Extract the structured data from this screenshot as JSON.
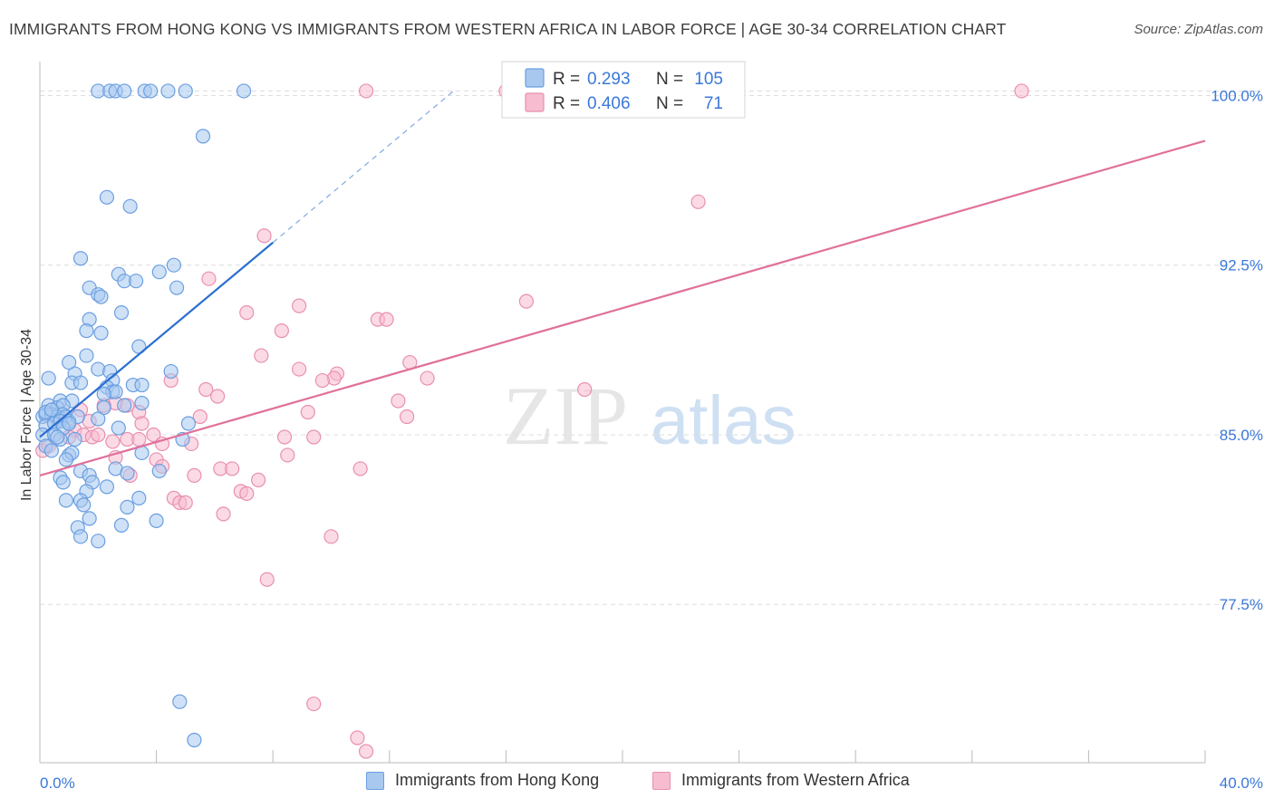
{
  "title": "IMMIGRANTS FROM HONG KONG VS IMMIGRANTS FROM WESTERN AFRICA IN LABOR FORCE | AGE 30-34 CORRELATION CHART",
  "source": "Source: ZipAtlas.com",
  "watermark": {
    "zip": "ZIP",
    "atlas": "atlas"
  },
  "colors": {
    "blue_fill": "#a8c8f0",
    "blue_stroke": "#6a9ee0",
    "blue_line": "#2a6fd0",
    "pink_fill": "#f7bcd0",
    "pink_stroke": "#e890b0",
    "pink_line": "#e0709a",
    "value_text": "#3a78d8",
    "grid": "#dddddd"
  },
  "legend": {
    "rows": [
      {
        "r_label": "R =",
        "r_value": "0.293",
        "n_label": "N =",
        "n_value": "105"
      },
      {
        "r_label": "R =",
        "r_value": "0.406",
        "n_label": "N =",
        "n_value": "71"
      }
    ]
  },
  "bottom_legend": [
    "Immigrants from Hong Kong",
    "Immigrants from Western Africa"
  ],
  "chart_data": {
    "type": "scatter",
    "title": "IMMIGRANTS FROM HONG KONG VS IMMIGRANTS FROM WESTERN AFRICA IN LABOR FORCE | AGE 30-34 CORRELATION CHART",
    "xlabel": "",
    "ylabel": "In Labor Force | Age 30-34",
    "xlim": [
      0,
      40
    ],
    "ylim": [
      70.5,
      101.5
    ],
    "x_tick_labels": [
      "0.0%",
      "40.0%"
    ],
    "y_ticks": [
      77.5,
      85.0,
      92.5,
      100.0
    ],
    "y_tick_labels": [
      "77.5%",
      "85.0%",
      "92.5%",
      "100.0%"
    ],
    "grid": true,
    "legend_position": "top-center",
    "series": [
      {
        "name": "Immigrants from Hong Kong",
        "color": "blue",
        "r": 0.293,
        "n": 105,
        "trend": {
          "x": [
            0,
            8.0
          ],
          "y": [
            84.9,
            93.5
          ],
          "dashed_to": [
            14.2,
            100.2
          ]
        },
        "points": [
          [
            2.0,
            100.2
          ],
          [
            2.4,
            100.2
          ],
          [
            2.6,
            100.2
          ],
          [
            2.9,
            100.2
          ],
          [
            3.6,
            100.2
          ],
          [
            3.8,
            100.2
          ],
          [
            4.4,
            100.2
          ],
          [
            5.0,
            100.2
          ],
          [
            7.0,
            100.2
          ],
          [
            5.6,
            98.2
          ],
          [
            2.3,
            95.5
          ],
          [
            3.1,
            95.1
          ],
          [
            1.4,
            92.8
          ],
          [
            4.6,
            92.5
          ],
          [
            2.7,
            92.1
          ],
          [
            4.1,
            92.2
          ],
          [
            2.9,
            91.8
          ],
          [
            3.3,
            91.8
          ],
          [
            1.7,
            91.5
          ],
          [
            4.7,
            91.5
          ],
          [
            2.0,
            91.2
          ],
          [
            2.1,
            91.1
          ],
          [
            2.8,
            90.4
          ],
          [
            1.7,
            90.1
          ],
          [
            1.6,
            89.6
          ],
          [
            2.1,
            89.5
          ],
          [
            3.4,
            88.9
          ],
          [
            1.6,
            88.5
          ],
          [
            0.3,
            87.5
          ],
          [
            1.2,
            87.7
          ],
          [
            1.1,
            87.3
          ],
          [
            1.4,
            87.3
          ],
          [
            2.0,
            87.9
          ],
          [
            2.4,
            87.8
          ],
          [
            2.5,
            87.4
          ],
          [
            2.3,
            87.1
          ],
          [
            1.0,
            88.2
          ],
          [
            4.5,
            87.8
          ],
          [
            3.2,
            87.2
          ],
          [
            3.5,
            87.2
          ],
          [
            2.5,
            86.9
          ],
          [
            2.6,
            86.9
          ],
          [
            2.2,
            86.8
          ],
          [
            0.7,
            86.5
          ],
          [
            1.1,
            86.5
          ],
          [
            0.3,
            86.3
          ],
          [
            0.6,
            86.2
          ],
          [
            0.8,
            86.3
          ],
          [
            2.2,
            86.2
          ],
          [
            2.9,
            86.3
          ],
          [
            3.5,
            86.4
          ],
          [
            0.1,
            85.8
          ],
          [
            0.2,
            85.9
          ],
          [
            0.4,
            85.9
          ],
          [
            0.6,
            85.8
          ],
          [
            0.7,
            85.7
          ],
          [
            0.8,
            85.9
          ],
          [
            0.9,
            85.8
          ],
          [
            1.0,
            85.6
          ],
          [
            1.3,
            85.8
          ],
          [
            2.0,
            85.7
          ],
          [
            0.2,
            85.4
          ],
          [
            0.5,
            85.5
          ],
          [
            0.7,
            85.6
          ],
          [
            0.8,
            85.3
          ],
          [
            1.0,
            85.5
          ],
          [
            2.7,
            85.3
          ],
          [
            5.1,
            85.5
          ],
          [
            0.1,
            85.0
          ],
          [
            0.5,
            85.0
          ],
          [
            0.7,
            84.8
          ],
          [
            1.2,
            84.8
          ],
          [
            4.9,
            84.8
          ],
          [
            0.2,
            84.5
          ],
          [
            0.4,
            84.3
          ],
          [
            3.5,
            84.2
          ],
          [
            1.0,
            84.1
          ],
          [
            1.1,
            84.2
          ],
          [
            0.9,
            83.9
          ],
          [
            1.4,
            83.4
          ],
          [
            2.6,
            83.5
          ],
          [
            4.1,
            83.4
          ],
          [
            0.7,
            83.1
          ],
          [
            0.8,
            82.9
          ],
          [
            1.7,
            83.2
          ],
          [
            1.8,
            82.9
          ],
          [
            2.3,
            82.7
          ],
          [
            1.6,
            82.5
          ],
          [
            3.0,
            83.3
          ],
          [
            0.9,
            82.1
          ],
          [
            1.4,
            82.1
          ],
          [
            1.5,
            81.9
          ],
          [
            3.4,
            82.2
          ],
          [
            3.0,
            81.8
          ],
          [
            1.7,
            81.3
          ],
          [
            4.0,
            81.2
          ],
          [
            1.3,
            80.9
          ],
          [
            2.8,
            81.0
          ],
          [
            1.4,
            80.5
          ],
          [
            2.0,
            80.3
          ],
          [
            4.8,
            73.2
          ],
          [
            5.3,
            71.5
          ],
          [
            0.2,
            86.0
          ],
          [
            0.4,
            86.1
          ],
          [
            0.6,
            84.9
          ]
        ]
      },
      {
        "name": "Immigrants from Western Africa",
        "color": "pink",
        "r": 0.406,
        "n": 71,
        "trend": {
          "x": [
            0,
            40
          ],
          "y": [
            83.2,
            98.0
          ]
        },
        "points": [
          [
            11.2,
            100.2
          ],
          [
            16.0,
            100.2
          ],
          [
            16.2,
            100.2
          ],
          [
            33.7,
            100.2
          ],
          [
            22.6,
            95.3
          ],
          [
            7.7,
            93.8
          ],
          [
            5.8,
            91.9
          ],
          [
            16.7,
            90.9
          ],
          [
            8.9,
            90.7
          ],
          [
            7.1,
            90.4
          ],
          [
            11.6,
            90.1
          ],
          [
            11.9,
            90.1
          ],
          [
            8.3,
            89.6
          ],
          [
            7.6,
            88.5
          ],
          [
            12.7,
            88.2
          ],
          [
            8.9,
            87.9
          ],
          [
            10.2,
            87.7
          ],
          [
            10.1,
            87.5
          ],
          [
            9.7,
            87.4
          ],
          [
            4.5,
            87.4
          ],
          [
            13.3,
            87.5
          ],
          [
            5.7,
            87.0
          ],
          [
            18.7,
            87.0
          ],
          [
            6.1,
            86.7
          ],
          [
            12.3,
            86.5
          ],
          [
            2.6,
            86.4
          ],
          [
            2.2,
            86.3
          ],
          [
            3.0,
            86.3
          ],
          [
            1.4,
            86.1
          ],
          [
            3.4,
            86.0
          ],
          [
            9.2,
            86.0
          ],
          [
            5.5,
            85.8
          ],
          [
            12.6,
            85.8
          ],
          [
            1.7,
            85.6
          ],
          [
            3.5,
            85.5
          ],
          [
            1.2,
            85.2
          ],
          [
            1.5,
            85.0
          ],
          [
            1.8,
            84.9
          ],
          [
            3.9,
            85.0
          ],
          [
            8.4,
            84.9
          ],
          [
            9.4,
            84.9
          ],
          [
            2.5,
            84.7
          ],
          [
            5.2,
            84.6
          ],
          [
            0.1,
            84.3
          ],
          [
            3.0,
            84.8
          ],
          [
            4.2,
            84.6
          ],
          [
            8.5,
            84.1
          ],
          [
            4.0,
            83.9
          ],
          [
            4.2,
            83.6
          ],
          [
            3.1,
            83.2
          ],
          [
            6.2,
            83.5
          ],
          [
            6.6,
            83.5
          ],
          [
            11.0,
            83.5
          ],
          [
            5.3,
            83.2
          ],
          [
            7.5,
            83.0
          ],
          [
            6.9,
            82.5
          ],
          [
            7.1,
            82.4
          ],
          [
            4.6,
            82.2
          ],
          [
            4.8,
            82.0
          ],
          [
            5.0,
            82.0
          ],
          [
            6.3,
            81.5
          ],
          [
            10.0,
            80.5
          ],
          [
            7.8,
            78.6
          ],
          [
            9.4,
            73.1
          ],
          [
            10.9,
            71.6
          ],
          [
            11.2,
            71.0
          ],
          [
            2.6,
            84.0
          ],
          [
            1.0,
            84.9
          ],
          [
            2.0,
            85.0
          ],
          [
            3.4,
            84.8
          ],
          [
            0.3,
            84.5
          ]
        ]
      }
    ]
  }
}
